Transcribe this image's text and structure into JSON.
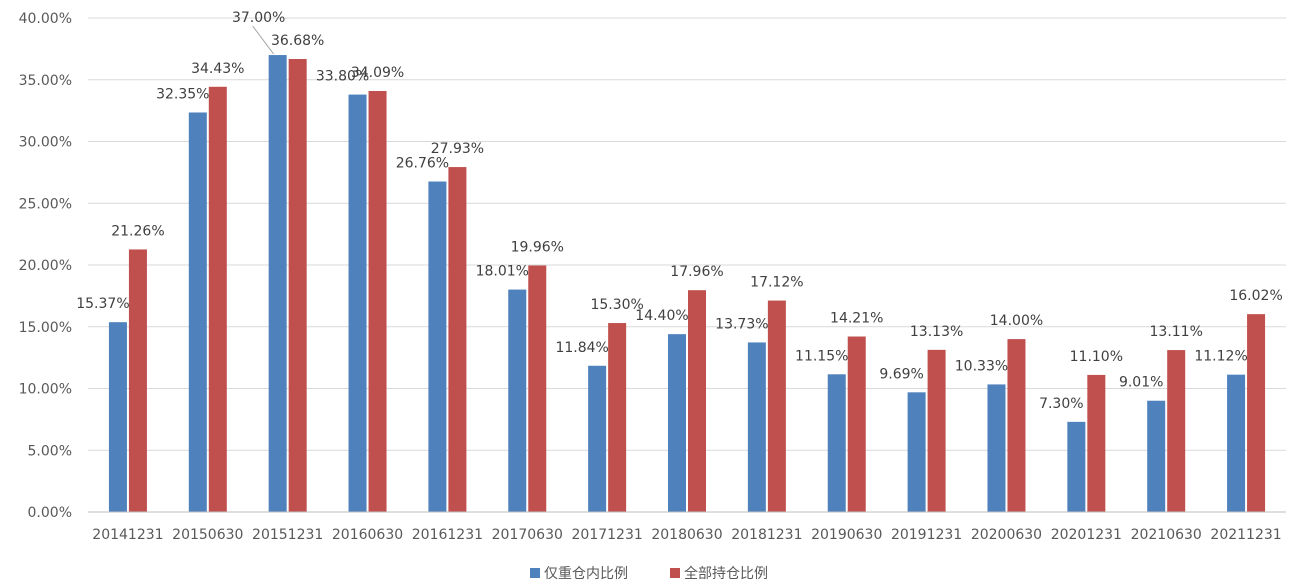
{
  "chart_data": {
    "type": "bar",
    "categories": [
      "20141231",
      "20150630",
      "20151231",
      "20160630",
      "20161231",
      "20170630",
      "20171231",
      "20180630",
      "20181231",
      "20190630",
      "20191231",
      "20200630",
      "20201231",
      "20210630",
      "20211231"
    ],
    "series": [
      {
        "name": "仅重仓内比例",
        "color": "#4f81bd",
        "values": [
          15.37,
          32.35,
          37.0,
          33.8,
          26.76,
          18.01,
          11.84,
          14.4,
          13.73,
          11.15,
          9.69,
          10.33,
          7.3,
          9.01,
          11.12
        ],
        "labels": [
          "15.37%",
          "32.35%",
          "37.00%",
          "33.80%",
          "26.76%",
          "18.01%",
          "11.84%",
          "14.40%",
          "13.73%",
          "11.15%",
          "9.69%",
          "10.33%",
          "7.30%",
          "9.01%",
          "11.12%"
        ]
      },
      {
        "name": "全部持仓比例",
        "color": "#c0504d",
        "values": [
          21.26,
          34.43,
          36.68,
          34.09,
          27.93,
          19.96,
          15.3,
          17.96,
          17.12,
          14.21,
          13.13,
          14.0,
          11.1,
          13.11,
          16.02
        ],
        "labels": [
          "21.26%",
          "34.43%",
          "36.68%",
          "34.09%",
          "27.93%",
          "19.96%",
          "15.30%",
          "17.96%",
          "17.12%",
          "14.21%",
          "13.13%",
          "14.00%",
          "11.10%",
          "13.11%",
          "16.02%"
        ]
      }
    ],
    "y_ticks": [
      "0.00%",
      "5.00%",
      "10.00%",
      "15.00%",
      "20.00%",
      "25.00%",
      "30.00%",
      "35.00%",
      "40.00%"
    ],
    "ylim": [
      0,
      40
    ],
    "grid": true,
    "legend_position": "bottom"
  }
}
